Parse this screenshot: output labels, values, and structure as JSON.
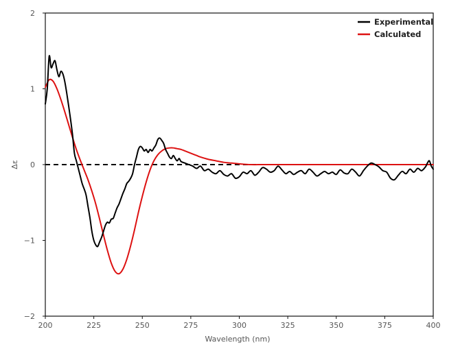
{
  "chart_data": {
    "type": "line",
    "title": "",
    "xlabel": "Wavelength (nm)",
    "ylabel": "Δε",
    "xlim": [
      200,
      400
    ],
    "ylim": [
      -2,
      2
    ],
    "xticks": [
      "200",
      "225",
      "250",
      "275",
      "300",
      "325",
      "350",
      "375",
      "400"
    ],
    "yticks": [
      "2",
      "1",
      "0",
      "−1",
      "−2"
    ],
    "grid": false,
    "legend": "top-right",
    "baseline": {
      "y": 0,
      "style": "dashed",
      "color": "#000000"
    },
    "series": [
      {
        "name": "Experimental",
        "color": "#000000",
        "x": [
          200,
          201,
          202,
          203,
          204,
          205,
          206,
          207,
          208,
          209,
          210,
          211,
          212,
          213,
          214,
          215,
          216,
          217,
          218,
          219,
          220,
          221,
          222,
          223,
          224,
          225,
          226,
          227,
          228,
          229,
          230,
          231,
          232,
          233,
          234,
          235,
          236,
          237,
          238,
          239,
          240,
          241,
          242,
          243,
          244,
          245,
          246,
          247,
          248,
          249,
          250,
          251,
          252,
          253,
          254,
          255,
          256,
          257,
          258,
          259,
          260,
          261,
          262,
          263,
          264,
          265,
          266,
          267,
          268,
          269,
          270,
          272,
          274,
          276,
          278,
          280,
          282,
          284,
          286,
          288,
          290,
          292,
          294,
          296,
          298,
          300,
          302,
          304,
          306,
          308,
          310,
          312,
          314,
          316,
          318,
          320,
          322,
          324,
          326,
          328,
          330,
          332,
          334,
          336,
          338,
          340,
          342,
          344,
          346,
          348,
          350,
          352,
          354,
          356,
          358,
          360,
          362,
          364,
          366,
          368,
          370,
          372,
          374,
          376,
          378,
          380,
          382,
          384,
          386,
          388,
          390,
          392,
          394,
          396,
          397,
          398,
          399,
          400
        ],
        "y": [
          0.8,
          1.0,
          1.43,
          1.28,
          1.33,
          1.37,
          1.25,
          1.16,
          1.23,
          1.2,
          1.1,
          0.95,
          0.78,
          0.6,
          0.4,
          0.15,
          0.05,
          -0.05,
          -0.15,
          -0.25,
          -0.32,
          -0.4,
          -0.55,
          -0.7,
          -0.88,
          -1.0,
          -1.06,
          -1.08,
          -1.02,
          -0.96,
          -0.88,
          -0.8,
          -0.76,
          -0.77,
          -0.72,
          -0.71,
          -0.64,
          -0.57,
          -0.52,
          -0.45,
          -0.38,
          -0.32,
          -0.25,
          -0.22,
          -0.18,
          -0.12,
          0.0,
          0.1,
          0.2,
          0.24,
          0.22,
          0.18,
          0.2,
          0.16,
          0.2,
          0.18,
          0.22,
          0.26,
          0.33,
          0.35,
          0.32,
          0.28,
          0.2,
          0.15,
          0.1,
          0.08,
          0.12,
          0.08,
          0.05,
          0.08,
          0.04,
          0.02,
          0.0,
          -0.02,
          -0.05,
          -0.02,
          -0.08,
          -0.06,
          -0.1,
          -0.12,
          -0.08,
          -0.13,
          -0.15,
          -0.12,
          -0.18,
          -0.16,
          -0.1,
          -0.12,
          -0.08,
          -0.14,
          -0.1,
          -0.04,
          -0.06,
          -0.1,
          -0.08,
          -0.02,
          -0.07,
          -0.12,
          -0.09,
          -0.13,
          -0.1,
          -0.08,
          -0.12,
          -0.06,
          -0.1,
          -0.15,
          -0.12,
          -0.09,
          -0.12,
          -0.1,
          -0.13,
          -0.07,
          -0.11,
          -0.12,
          -0.06,
          -0.1,
          -0.15,
          -0.08,
          -0.02,
          0.02,
          0.0,
          -0.03,
          -0.08,
          -0.1,
          -0.18,
          -0.2,
          -0.14,
          -0.09,
          -0.12,
          -0.06,
          -0.1,
          -0.05,
          -0.08,
          -0.03,
          0.02,
          0.05,
          -0.02,
          -0.06
        ]
      },
      {
        "name": "Calculated",
        "color": "#dd1111",
        "x": [
          200,
          202,
          204,
          206,
          208,
          210,
          212,
          214,
          216,
          218,
          220,
          222,
          224,
          226,
          228,
          230,
          232,
          234,
          236,
          238,
          240,
          242,
          244,
          246,
          248,
          250,
          252,
          254,
          256,
          258,
          260,
          262,
          264,
          266,
          268,
          270,
          272,
          274,
          276,
          278,
          280,
          284,
          288,
          292,
          296,
          300,
          306,
          312,
          320,
          330,
          340,
          350,
          360,
          370,
          380,
          390,
          400
        ],
        "y": [
          1.02,
          1.12,
          1.1,
          1.0,
          0.86,
          0.7,
          0.53,
          0.36,
          0.2,
          0.06,
          -0.07,
          -0.2,
          -0.35,
          -0.52,
          -0.72,
          -0.93,
          -1.13,
          -1.3,
          -1.41,
          -1.44,
          -1.38,
          -1.25,
          -1.07,
          -0.86,
          -0.63,
          -0.42,
          -0.23,
          -0.07,
          0.05,
          0.13,
          0.18,
          0.21,
          0.22,
          0.22,
          0.21,
          0.2,
          0.18,
          0.16,
          0.14,
          0.12,
          0.1,
          0.07,
          0.05,
          0.03,
          0.02,
          0.01,
          0.0,
          0.0,
          0.0,
          0.0,
          0.0,
          0.0,
          0.0,
          0.0,
          0.0,
          0.0,
          0.0
        ]
      }
    ]
  }
}
